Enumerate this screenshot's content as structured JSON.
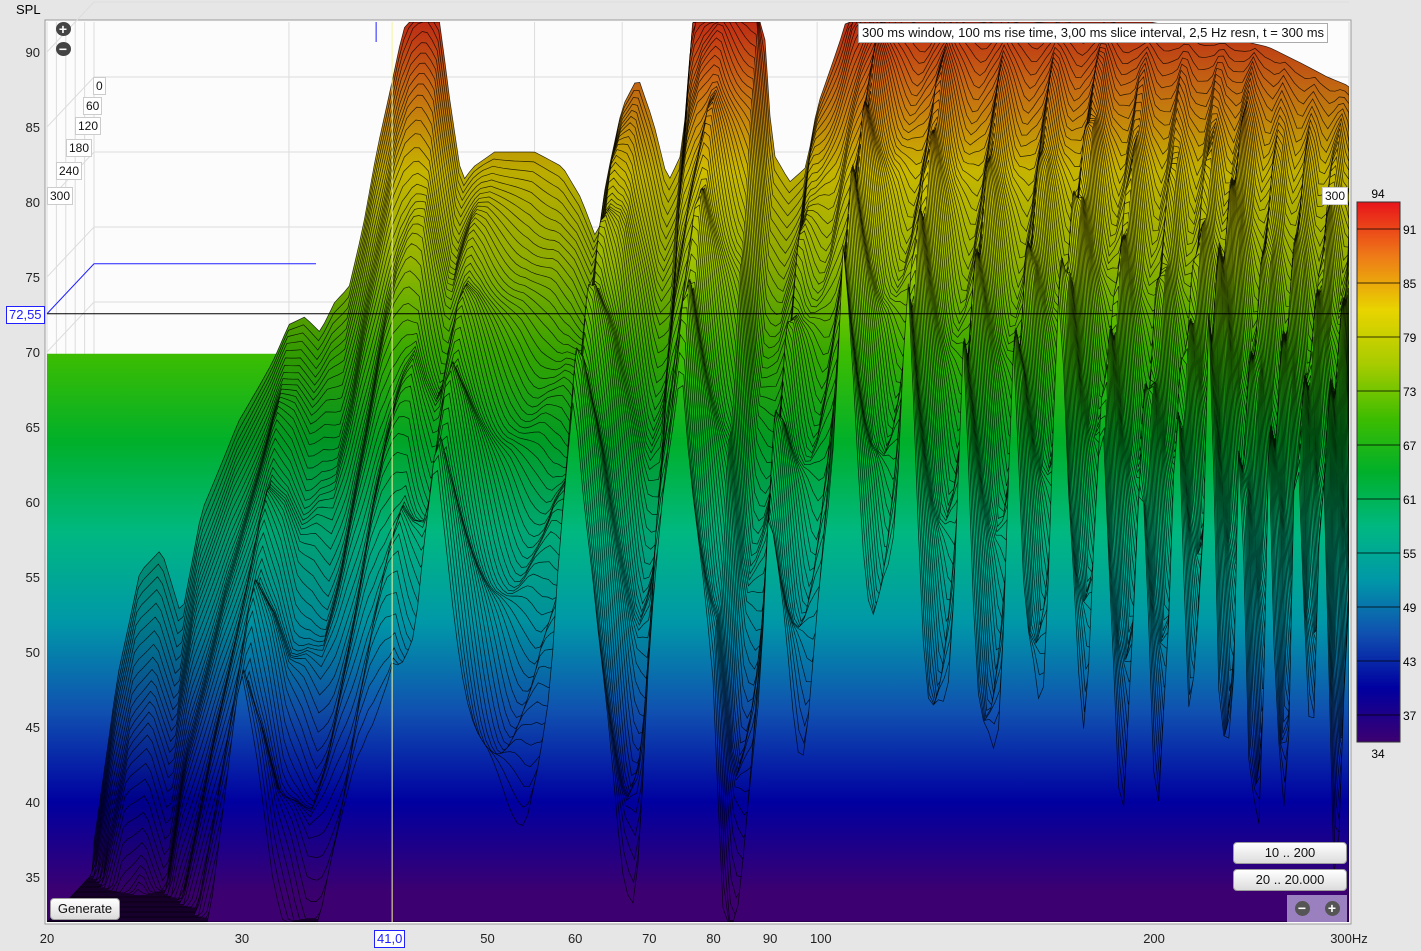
{
  "chart_data": {
    "type": "waterfall",
    "ylabel": "SPL",
    "x_scale": "log",
    "xlim": [
      20,
      300
    ],
    "ylim": [
      32,
      92
    ],
    "x_ticks": [
      "20",
      "30",
      "40",
      "50",
      "60",
      "70",
      "80",
      "90",
      "100",
      "200",
      "300Hz"
    ],
    "x_tick_values": [
      20,
      30,
      40,
      50,
      60,
      70,
      80,
      90,
      100,
      200,
      300
    ],
    "y_ticks": [
      35,
      40,
      45,
      50,
      55,
      60,
      65,
      70,
      75,
      80,
      85,
      90
    ],
    "time_ticks_ms": [
      "0",
      "60",
      "120",
      "180",
      "240",
      "300"
    ],
    "time_range_ms": [
      0,
      300
    ],
    "colorbar": {
      "min": 34,
      "max": 94,
      "ticks": [
        37,
        43,
        49,
        55,
        61,
        67,
        73,
        79,
        85,
        91
      ],
      "top_label": "94",
      "bottom_label": "34"
    },
    "annotation": "300 ms window, 100 ms rise time, 3,00 ms slice interval, 2,5 Hz resn, t = 300 ms",
    "slice_label_right": "300",
    "cursor": {
      "freq_label": "41,0",
      "spl_label": "72,55",
      "freq": 41.0,
      "spl": 72.55
    },
    "grid": true,
    "t0_curve": {
      "freq": [
        20,
        21,
        22,
        23,
        24,
        25,
        26,
        27,
        28,
        29,
        30,
        31,
        32,
        33,
        34,
        35,
        36,
        37,
        38,
        39,
        40,
        41,
        42,
        43,
        44,
        46,
        48,
        50,
        53,
        55,
        57,
        58,
        60,
        62,
        64,
        66,
        68,
        70,
        72,
        75,
        80,
        82,
        85,
        88,
        90,
        95,
        98,
        100,
        110,
        130,
        150,
        170,
        200,
        230,
        260,
        280,
        300
      ],
      "spl": [
        34,
        45,
        52,
        53.5,
        49,
        56,
        59,
        62,
        64,
        66,
        68.5,
        69,
        68,
        70,
        71,
        75,
        80,
        84,
        88,
        90,
        90.5,
        89,
        83,
        78,
        79,
        80,
        80,
        80,
        79,
        77,
        74,
        78,
        83,
        85,
        82,
        78,
        80,
        92,
        93,
        92,
        92,
        80,
        78,
        79,
        83,
        88,
        92,
        93,
        92,
        91,
        90,
        89,
        88,
        87,
        85,
        84,
        80
      ]
    },
    "colors": {
      "94": "#e8141a",
      "88": "#ee7a18",
      "82": "#e8d400",
      "76": "#a8cc00",
      "70": "#3ebd00",
      "64": "#00b02a",
      "58": "#00b880",
      "52": "#0098a8",
      "46": "#1050b0",
      "40": "#0000a0",
      "34": "#3c0070"
    }
  },
  "controls": {
    "generate": "Generate",
    "range_1": "10 .. 200",
    "range_2": "20 .. 20.000",
    "zoom_in": "+",
    "zoom_out": "−"
  }
}
